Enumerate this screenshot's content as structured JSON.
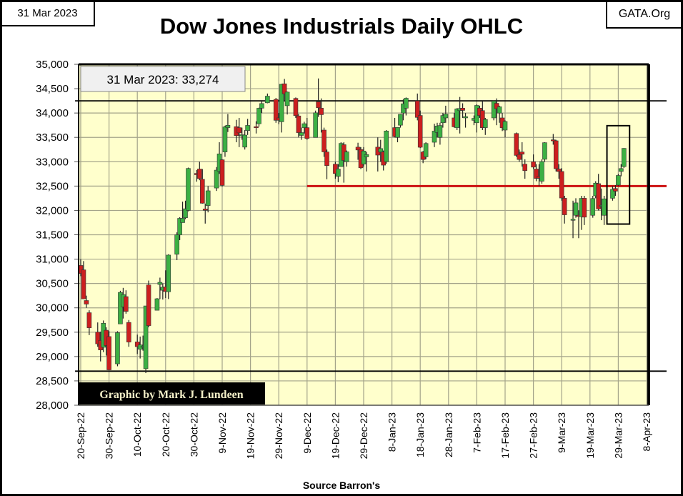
{
  "header": {
    "date": "31 Mar 2023",
    "site": "GATA.Org",
    "title": "Dow Jones Industrials Daily OHLC"
  },
  "footer": {
    "source": "Source Barron's"
  },
  "colors": {
    "up": "#3cb043",
    "down": "#cc1f1f",
    "plot_bg": "#ffffcc",
    "grid": "#a4a48a",
    "support_line": "#cc1111"
  },
  "chart_data": {
    "type": "ohlc-candlestick",
    "title": "Dow Jones Industrials Daily OHLC",
    "xlabel": "Source Barron's",
    "ylabel": "",
    "ylim": [
      28000,
      35000
    ],
    "yticks": [
      "28,000",
      "28,500",
      "29,000",
      "29,500",
      "30,000",
      "30,500",
      "31,000",
      "31,500",
      "32,000",
      "32,500",
      "33,000",
      "33,500",
      "34,000",
      "34,500",
      "35,000"
    ],
    "yticks_values": [
      28000,
      28500,
      29000,
      29500,
      30000,
      30500,
      31000,
      31500,
      32000,
      32500,
      33000,
      33500,
      34000,
      34500,
      35000
    ],
    "xlim": [
      "2022-09-20",
      "2023-04-08"
    ],
    "xticks": [
      "20-Sep-22",
      "30-Sep-22",
      "10-Oct-22",
      "20-Oct-22",
      "30-Oct-22",
      "9-Nov-22",
      "19-Nov-22",
      "29-Nov-22",
      "9-Dec-22",
      "19-Dec-22",
      "29-Dec-22",
      "8-Jan-23",
      "18-Jan-23",
      "28-Jan-23",
      "7-Feb-23",
      "17-Feb-23",
      "27-Feb-23",
      "9-Mar-23",
      "19-Mar-23",
      "29-Mar-23",
      "8-Apr-23"
    ],
    "grid": true,
    "annotation_box": "31 Mar 2023:  33,274",
    "credit": "Graphic by Mark J. Lundeen",
    "reference_lines": [
      {
        "name": "upper-black-line",
        "value": 34250,
        "color": "#000000",
        "from": "2022-09-18"
      },
      {
        "name": "lower-black-line",
        "value": 28700,
        "color": "#000000",
        "from": "2022-09-18"
      },
      {
        "name": "red-support-line",
        "value": 32500,
        "color": "#cc1111",
        "from": "2022-12-09"
      }
    ],
    "highlight_box": {
      "from": "2023-03-25",
      "to": "2023-04-02",
      "low": 31720,
      "high": 33740
    },
    "columns": [
      "date",
      "open",
      "high",
      "low",
      "close"
    ],
    "ohlc": [
      [
        "2022-09-20",
        30870,
        31000,
        30650,
        30706
      ],
      [
        "2022-09-21",
        30780,
        30960,
        30180,
        30184
      ],
      [
        "2022-09-22",
        30150,
        30250,
        30000,
        30077
      ],
      [
        "2022-09-23",
        29900,
        29950,
        29440,
        29590
      ],
      [
        "2022-09-26",
        29500,
        29700,
        29200,
        29260
      ],
      [
        "2022-09-27",
        29330,
        29510,
        28900,
        29135
      ],
      [
        "2022-09-28",
        29190,
        29740,
        29090,
        29684
      ],
      [
        "2022-09-29",
        29540,
        29600,
        29020,
        29226
      ],
      [
        "2022-09-30",
        29410,
        29520,
        28720,
        28726
      ],
      [
        "2022-10-03",
        28850,
        29520,
        28800,
        29491
      ],
      [
        "2022-10-04",
        29670,
        30350,
        29670,
        30317
      ],
      [
        "2022-10-05",
        30020,
        30410,
        29780,
        30274
      ],
      [
        "2022-10-06",
        30230,
        30360,
        29880,
        29927
      ],
      [
        "2022-10-07",
        29700,
        29750,
        29200,
        29297
      ],
      [
        "2022-10-10",
        29300,
        29450,
        29050,
        29203
      ],
      [
        "2022-10-11",
        29150,
        29410,
        28960,
        29240
      ],
      [
        "2022-10-12",
        29210,
        29430,
        29120,
        29211
      ],
      [
        "2022-10-13",
        28750,
        30040,
        28660,
        30039
      ],
      [
        "2022-10-14",
        30470,
        30560,
        29600,
        29635
      ],
      [
        "2022-10-17",
        29950,
        30200,
        29950,
        30186
      ],
      [
        "2022-10-18",
        30480,
        30620,
        30180,
        30524
      ],
      [
        "2022-10-19",
        30360,
        30500,
        30170,
        30424
      ],
      [
        "2022-10-20",
        30430,
        30770,
        30200,
        30334
      ],
      [
        "2022-10-21",
        30330,
        31100,
        30180,
        31083
      ],
      [
        "2022-10-24",
        31100,
        31550,
        30980,
        31500
      ],
      [
        "2022-10-25",
        31500,
        31860,
        31390,
        31837
      ],
      [
        "2022-10-26",
        31750,
        32180,
        31750,
        31839
      ],
      [
        "2022-10-27",
        31850,
        32200,
        31820,
        32034
      ],
      [
        "2022-10-28",
        32000,
        32880,
        31980,
        32862
      ],
      [
        "2022-10-31",
        32760,
        32830,
        32590,
        32733
      ],
      [
        "2022-11-01",
        32850,
        33000,
        32620,
        32653
      ],
      [
        "2022-11-02",
        32640,
        32850,
        32140,
        32148
      ],
      [
        "2022-11-03",
        32030,
        32140,
        31730,
        32002
      ],
      [
        "2022-11-04",
        32100,
        32500,
        31960,
        32403
      ],
      [
        "2022-11-07",
        32460,
        32890,
        32400,
        32827
      ],
      [
        "2022-11-08",
        32800,
        33400,
        32750,
        33161
      ],
      [
        "2022-11-09",
        33040,
        33050,
        32490,
        32514
      ],
      [
        "2022-11-10",
        33200,
        33740,
        33100,
        33716
      ],
      [
        "2022-11-11",
        33700,
        33980,
        33610,
        33748
      ],
      [
        "2022-11-14",
        33720,
        33860,
        33400,
        33537
      ],
      [
        "2022-11-15",
        33700,
        33900,
        33300,
        33593
      ],
      [
        "2022-11-16",
        33540,
        33700,
        33450,
        33554
      ],
      [
        "2022-11-17",
        33300,
        33650,
        33250,
        33547
      ],
      [
        "2022-11-18",
        33640,
        33880,
        33550,
        33746
      ],
      [
        "2022-11-21",
        33720,
        33830,
        33580,
        33700
      ],
      [
        "2022-11-22",
        33780,
        34110,
        33720,
        34098
      ],
      [
        "2022-11-23",
        34100,
        34250,
        34000,
        34195
      ],
      [
        "2022-11-25",
        34210,
        34400,
        34200,
        34347
      ],
      [
        "2022-11-28",
        34280,
        34310,
        33800,
        33850
      ],
      [
        "2022-11-29",
        33900,
        34000,
        33770,
        33853
      ],
      [
        "2022-11-30",
        33820,
        34600,
        33600,
        34590
      ],
      [
        "2022-12-01",
        34600,
        34700,
        34250,
        34395
      ],
      [
        "2022-12-02",
        34150,
        34440,
        33970,
        34430
      ],
      [
        "2022-12-05",
        34300,
        34320,
        33900,
        33947
      ],
      [
        "2022-12-06",
        33940,
        33980,
        33500,
        33597
      ],
      [
        "2022-12-07",
        33540,
        33700,
        33450,
        33598
      ],
      [
        "2022-12-08",
        33700,
        33820,
        33580,
        33781
      ],
      [
        "2022-12-09",
        33700,
        33900,
        33450,
        33476
      ],
      [
        "2022-12-12",
        33500,
        34050,
        33500,
        34005
      ],
      [
        "2022-12-13",
        34230,
        34710,
        33920,
        34108
      ],
      [
        "2022-12-14",
        34100,
        34300,
        33600,
        33966
      ],
      [
        "2022-12-15",
        33650,
        33700,
        33100,
        33202
      ],
      [
        "2022-12-16",
        33200,
        33250,
        32640,
        32920
      ],
      [
        "2022-12-19",
        32950,
        33000,
        32650,
        32757
      ],
      [
        "2022-12-20",
        32700,
        32950,
        32580,
        32850
      ],
      [
        "2022-12-21",
        32900,
        33400,
        32900,
        33376
      ],
      [
        "2022-12-22",
        33350,
        33400,
        32570,
        33027
      ],
      [
        "2022-12-23",
        33000,
        33230,
        32900,
        33203
      ],
      [
        "2022-12-27",
        33300,
        33390,
        33040,
        33241
      ],
      [
        "2022-12-28",
        33250,
        33300,
        32850,
        32875
      ],
      [
        "2022-12-29",
        32950,
        33300,
        32900,
        33220
      ],
      [
        "2022-12-30",
        33100,
        33200,
        32800,
        33147
      ],
      [
        "2023-01-03",
        33300,
        33500,
        32800,
        33136
      ],
      [
        "2023-01-04",
        33200,
        33450,
        33000,
        33270
      ],
      [
        "2023-01-05",
        33200,
        33230,
        32820,
        32930
      ],
      [
        "2023-01-06",
        33000,
        33650,
        32960,
        33631
      ],
      [
        "2023-01-09",
        33700,
        33900,
        33500,
        33517
      ],
      [
        "2023-01-10",
        33500,
        33710,
        33400,
        33704
      ],
      [
        "2023-01-11",
        33750,
        33980,
        33700,
        33973
      ],
      [
        "2023-01-12",
        34000,
        34280,
        33850,
        34190
      ],
      [
        "2023-01-13",
        34100,
        34320,
        33950,
        34303
      ],
      [
        "2023-01-17",
        34250,
        34400,
        33850,
        33910
      ],
      [
        "2023-01-18",
        33950,
        34050,
        33280,
        33297
      ],
      [
        "2023-01-19",
        33200,
        33220,
        32970,
        33045
      ],
      [
        "2023-01-20",
        33100,
        33400,
        33050,
        33375
      ],
      [
        "2023-01-23",
        33400,
        33780,
        33300,
        33629
      ],
      [
        "2023-01-24",
        33600,
        33800,
        33500,
        33734
      ],
      [
        "2023-01-25",
        33500,
        33800,
        33350,
        33744
      ],
      [
        "2023-01-26",
        33800,
        34000,
        33700,
        33949
      ],
      [
        "2023-01-27",
        33900,
        34150,
        33800,
        33978
      ],
      [
        "2023-01-30",
        33900,
        34000,
        33700,
        33717
      ],
      [
        "2023-01-31",
        33700,
        34100,
        33650,
        34086
      ],
      [
        "2023-02-01",
        34050,
        34330,
        33580,
        34093
      ],
      [
        "2023-02-02",
        34100,
        34200,
        33900,
        34054
      ],
      [
        "2023-02-03",
        33900,
        34000,
        33700,
        33926
      ],
      [
        "2023-02-06",
        33850,
        33950,
        33750,
        33891
      ],
      [
        "2023-02-07",
        33800,
        34180,
        33600,
        34156
      ],
      [
        "2023-02-08",
        34100,
        34150,
        33900,
        33949
      ],
      [
        "2023-02-09",
        34050,
        34250,
        33650,
        33699
      ],
      [
        "2023-02-10",
        33700,
        33900,
        33550,
        33869
      ],
      [
        "2023-02-13",
        33900,
        34260,
        33850,
        34246
      ],
      [
        "2023-02-14",
        34200,
        34300,
        33750,
        34089
      ],
      [
        "2023-02-15",
        34000,
        34150,
        33800,
        34128
      ],
      [
        "2023-02-16",
        33900,
        34000,
        33630,
        33697
      ],
      [
        "2023-02-17",
        33650,
        33850,
        33500,
        33827
      ],
      [
        "2023-02-21",
        33580,
        33600,
        33100,
        33130
      ],
      [
        "2023-02-22",
        33150,
        33250,
        33000,
        33045
      ],
      [
        "2023-02-23",
        33200,
        33400,
        32900,
        33154
      ],
      [
        "2023-02-24",
        32950,
        33050,
        32650,
        32817
      ],
      [
        "2023-02-27",
        33000,
        33150,
        32850,
        32889
      ],
      [
        "2023-02-28",
        32850,
        32950,
        32600,
        32657
      ],
      [
        "2023-03-01",
        32700,
        32950,
        32500,
        32662
      ],
      [
        "2023-03-02",
        32600,
        33050,
        32550,
        33004
      ],
      [
        "2023-03-03",
        33050,
        33400,
        33000,
        33391
      ],
      [
        "2023-03-06",
        33450,
        33570,
        33350,
        33432
      ],
      [
        "2023-03-07",
        33430,
        33450,
        32800,
        32856
      ],
      [
        "2023-03-08",
        32850,
        32950,
        32650,
        32798
      ],
      [
        "2023-03-09",
        32800,
        32870,
        32200,
        32255
      ],
      [
        "2023-03-10",
        32250,
        32300,
        31730,
        31910
      ],
      [
        "2023-03-13",
        31800,
        32200,
        31430,
        31819
      ],
      [
        "2023-03-14",
        31900,
        32250,
        31850,
        32155
      ],
      [
        "2023-03-15",
        31900,
        32000,
        31430,
        31875
      ],
      [
        "2023-03-16",
        31870,
        32300,
        31600,
        32247
      ],
      [
        "2023-03-17",
        32250,
        32300,
        31700,
        31862
      ],
      [
        "2023-03-20",
        31900,
        32300,
        31850,
        32245
      ],
      [
        "2023-03-21",
        32300,
        32600,
        32250,
        32561
      ],
      [
        "2023-03-22",
        32550,
        32750,
        32000,
        32031
      ],
      [
        "2023-03-23",
        32100,
        32450,
        31800,
        32106
      ],
      [
        "2023-03-24",
        31900,
        32300,
        31700,
        32238
      ],
      [
        "2023-03-27",
        32250,
        32500,
        32200,
        32433
      ],
      [
        "2023-03-28",
        32450,
        32520,
        32300,
        32395
      ],
      [
        "2023-03-29",
        32520,
        32750,
        32500,
        32718
      ],
      [
        "2023-03-30",
        32800,
        32950,
        32700,
        32860
      ],
      [
        "2023-03-31",
        32900,
        33280,
        32870,
        33274
      ]
    ]
  }
}
